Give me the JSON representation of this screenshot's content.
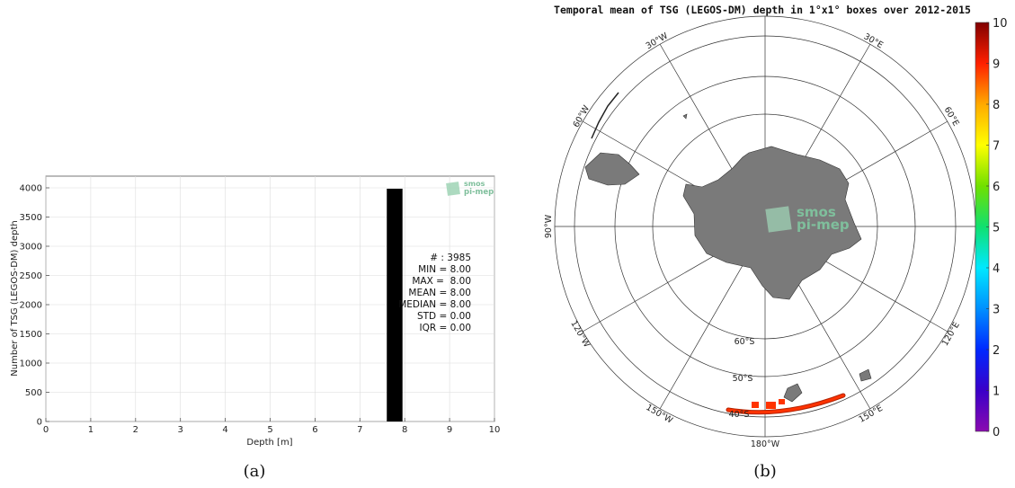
{
  "chart_data": [
    {
      "type": "bar",
      "xlabel": "Depth [m]",
      "ylabel": "Number of TSG (LEGOS-DM) depth",
      "xlim": [
        0,
        10
      ],
      "ylim": [
        0,
        4200
      ],
      "xticks": [
        "0",
        "1",
        "2",
        "3",
        "4",
        "5",
        "6",
        "7",
        "8",
        "9",
        "10"
      ],
      "yticks": [
        "0",
        "500",
        "1000",
        "1500",
        "2000",
        "2500",
        "3000",
        "3500",
        "4000"
      ],
      "bars": [
        {
          "x_from": 7.6,
          "x_to": 7.95,
          "value": 3985
        }
      ],
      "grid": true,
      "stats": [
        "# : 3985",
        "MIN = 8.00",
        "MAX =  8.00",
        "MEAN = 8.00",
        "MEDIAN = 8.00",
        "STD = 0.00",
        "IQR = 0.00"
      ],
      "caption": "(a)",
      "logo": {
        "line1": "smos",
        "line2": "pi-mep"
      }
    },
    {
      "type": "heatmap",
      "title": "Temporal mean of TSG (LEGOS-DM) depth in 1°x1° boxes over 2012-2015",
      "projection": "south-polar-stereographic",
      "longitude_labels": [
        "30°W",
        "30°E",
        "60°W",
        "60°E",
        "90°W",
        "120°W",
        "120°E",
        "150°W",
        "150°E",
        "180°W"
      ],
      "latitude_labels": [
        "60°S",
        "50°S",
        "40°S"
      ],
      "colorbar": {
        "range": [
          0,
          10
        ],
        "ticks": [
          "0",
          "1",
          "2",
          "3",
          "4",
          "5",
          "6",
          "7",
          "8",
          "9",
          "10"
        ]
      },
      "caption": "(b)",
      "logo": {
        "line1": "smos",
        "line2": "pi-mep"
      }
    }
  ],
  "colors": {
    "bar": "#000000",
    "land": "#7a7a7a",
    "data": "#ff3300",
    "logo": "#7fbf9c"
  }
}
